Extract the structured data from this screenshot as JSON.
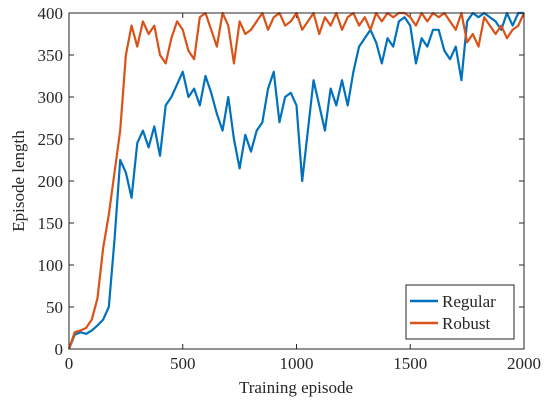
{
  "chart_data": {
    "type": "line",
    "xlabel": "Training episode",
    "ylabel": "Episode length",
    "x": [
      0,
      25,
      50,
      75,
      100,
      125,
      150,
      175,
      200,
      225,
      250,
      275,
      300,
      325,
      350,
      375,
      400,
      425,
      450,
      475,
      500,
      525,
      550,
      575,
      600,
      625,
      650,
      675,
      700,
      725,
      750,
      775,
      800,
      825,
      850,
      875,
      900,
      925,
      950,
      975,
      1000,
      1025,
      1050,
      1075,
      1100,
      1125,
      1150,
      1175,
      1200,
      1225,
      1250,
      1275,
      1300,
      1325,
      1350,
      1375,
      1400,
      1425,
      1450,
      1475,
      1500,
      1525,
      1550,
      1575,
      1600,
      1625,
      1650,
      1675,
      1700,
      1725,
      1750,
      1775,
      1800,
      1825,
      1850,
      1875,
      1900,
      1925,
      1950,
      1975,
      2000
    ],
    "series": [
      {
        "name": "Regular",
        "color": "#0072bd",
        "values": [
          0,
          17,
          20,
          18,
          22,
          28,
          35,
          50,
          130,
          225,
          210,
          180,
          245,
          260,
          240,
          265,
          230,
          290,
          300,
          315,
          330,
          300,
          310,
          290,
          325,
          305,
          280,
          260,
          300,
          250,
          215,
          255,
          235,
          260,
          270,
          310,
          330,
          270,
          300,
          305,
          290,
          200,
          260,
          320,
          290,
          260,
          310,
          290,
          320,
          290,
          330,
          360,
          370,
          380,
          365,
          340,
          370,
          360,
          390,
          395,
          385,
          340,
          370,
          360,
          380,
          380,
          355,
          345,
          360,
          320,
          390,
          400,
          395,
          400,
          395,
          390,
          380,
          400,
          385,
          400,
          400
        ]
      },
      {
        "name": "Robust",
        "color": "#d95319",
        "values": [
          0,
          20,
          22,
          25,
          35,
          60,
          120,
          160,
          210,
          260,
          350,
          385,
          360,
          390,
          375,
          385,
          350,
          340,
          370,
          390,
          380,
          355,
          345,
          395,
          400,
          380,
          360,
          400,
          385,
          340,
          390,
          375,
          380,
          390,
          400,
          380,
          395,
          400,
          385,
          390,
          400,
          380,
          390,
          400,
          375,
          395,
          385,
          400,
          380,
          395,
          400,
          385,
          395,
          380,
          400,
          390,
          400,
          395,
          400,
          400,
          395,
          385,
          400,
          390,
          400,
          395,
          400,
          390,
          380,
          400,
          365,
          375,
          360,
          395,
          385,
          375,
          385,
          370,
          380,
          385,
          400
        ]
      }
    ],
    "xlim": [
      0,
      2000
    ],
    "xticks": [
      0,
      500,
      1000,
      1500,
      2000
    ],
    "ylim": [
      0,
      400
    ],
    "yticks": [
      0,
      50,
      100,
      150,
      200,
      250,
      300,
      350,
      400
    ],
    "grid": false,
    "legend": "lower right"
  }
}
